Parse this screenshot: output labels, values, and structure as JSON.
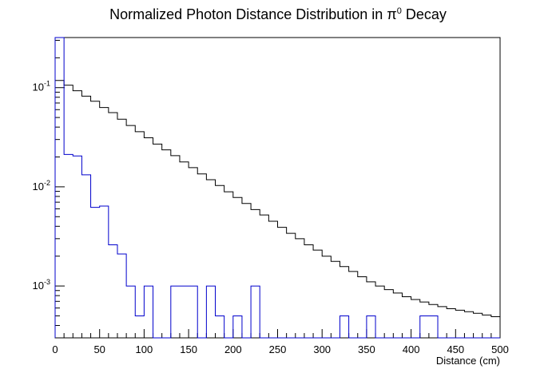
{
  "chart_data": {
    "type": "line",
    "title_main": "Normalized Photon Distance Distribution in π",
    "title_sup": "0",
    "title_tail": " Decay",
    "xlabel": "Distance (cm)",
    "ylabel": "",
    "xlim": [
      0,
      500
    ],
    "ylim": [
      0.0003,
      0.32
    ],
    "yscale": "log",
    "grid": false,
    "x_ticks": [
      "0",
      "50",
      "100",
      "150",
      "200",
      "250",
      "300",
      "350",
      "400",
      "450",
      "500"
    ],
    "y_ticks": [
      {
        "base": "10",
        "exp": "-1",
        "value": 0.1
      },
      {
        "base": "10",
        "exp": "-2",
        "value": 0.01
      },
      {
        "base": "10",
        "exp": "-3",
        "value": 0.001
      }
    ],
    "bin_width": 10,
    "bins": [
      0,
      10,
      20,
      30,
      40,
      50,
      60,
      70,
      80,
      90,
      100,
      110,
      120,
      130,
      140,
      150,
      160,
      170,
      180,
      190,
      200,
      210,
      220,
      230,
      240,
      250,
      260,
      270,
      280,
      290,
      300,
      310,
      320,
      330,
      340,
      350,
      360,
      370,
      380,
      390,
      400,
      410,
      420,
      430,
      440,
      450,
      460,
      470,
      480,
      490
    ],
    "series": [
      {
        "color": "#000000",
        "values": [
          0.118,
          0.106,
          0.093,
          0.082,
          0.073,
          0.063,
          0.056,
          0.048,
          0.0415,
          0.036,
          0.0312,
          0.027,
          0.0236,
          0.0206,
          0.0178,
          0.0156,
          0.0135,
          0.0118,
          0.0103,
          0.0089,
          0.0078,
          0.0068,
          0.0059,
          0.0052,
          0.0045,
          0.0039,
          0.0034,
          0.003,
          0.0026,
          0.0023,
          0.002,
          0.00177,
          0.00157,
          0.0014,
          0.00124,
          0.0011,
          0.001,
          0.00092,
          0.00085,
          0.00078,
          0.00073,
          0.00069,
          0.00065,
          0.00062,
          0.00059,
          0.00057,
          0.00055,
          0.00053,
          0.00051,
          0.00049
        ]
      },
      {
        "color": "#0000cc",
        "values": [
          0.33,
          0.0212,
          0.0205,
          0.0132,
          0.0062,
          0.0064,
          0.0026,
          0.0021,
          0.001,
          0.0005,
          0.001,
          0,
          0,
          0.001,
          0.001,
          0.001,
          0,
          0.001,
          0.0005,
          0,
          0.0005,
          0,
          0.001,
          0,
          0,
          0,
          0,
          0,
          0,
          0,
          0,
          0,
          0.0005,
          0,
          0,
          0.0005,
          0,
          0,
          0,
          0,
          0,
          0.0005,
          0.0005,
          0,
          0,
          0,
          0,
          0,
          0,
          0
        ]
      }
    ]
  }
}
